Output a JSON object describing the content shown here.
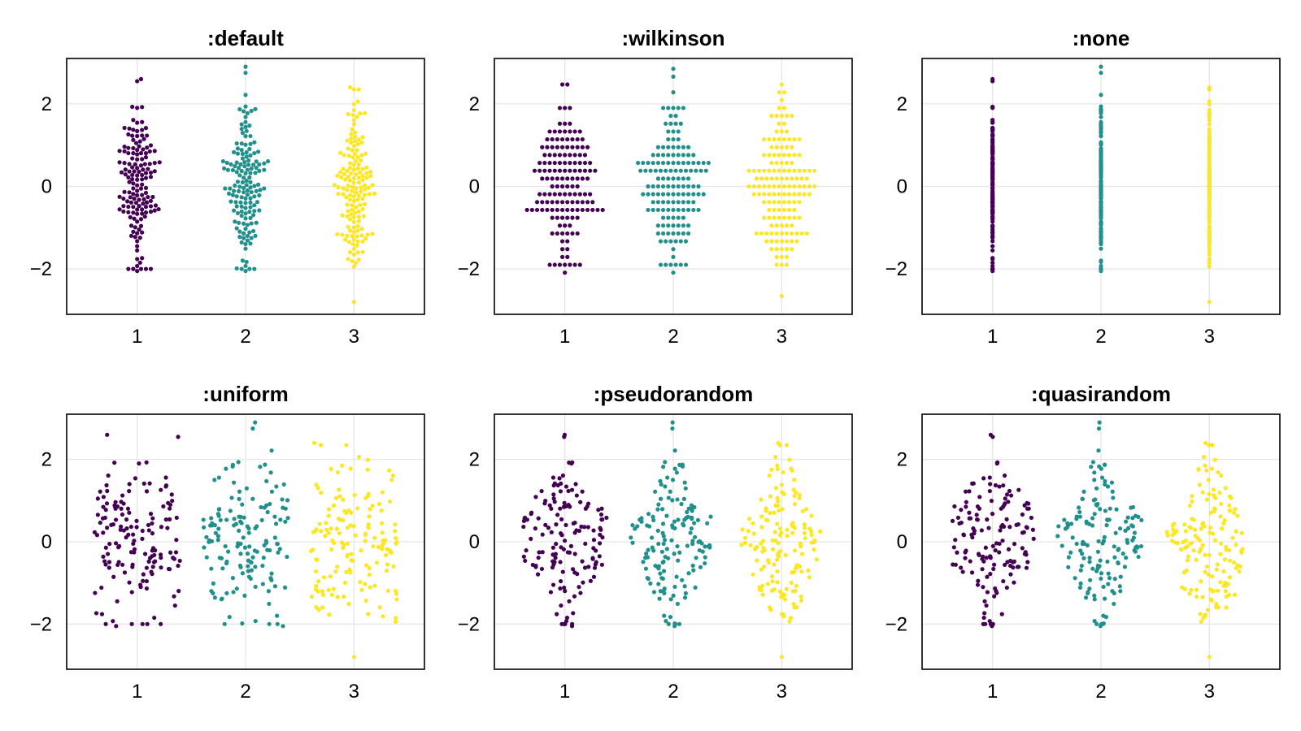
{
  "figure": {
    "description_free": true
  },
  "series_colors": {
    "1": "#440154",
    "2": "#21908C",
    "3": "#FDE725"
  },
  "chart_data": [
    {
      "type": "scatter",
      "title": ":default",
      "layout_style": "swarm",
      "categories": [
        "1",
        "2",
        "3"
      ],
      "x_ticks": [
        "1",
        "2",
        "3"
      ],
      "y_ticks": [
        "−2",
        "0",
        "2"
      ],
      "xlim": [
        0.35,
        3.65
      ],
      "ylim": [
        -3.1,
        3.1
      ],
      "series": [
        {
          "name": "1",
          "n": 150,
          "y_min": -2.05,
          "y_max": 2.6
        },
        {
          "name": "2",
          "n": 150,
          "y_min": -2.05,
          "y_max": 2.9
        },
        {
          "name": "3",
          "n": 150,
          "y_min": -2.8,
          "y_max": 2.4
        }
      ]
    },
    {
      "type": "scatter",
      "title": ":wilkinson",
      "layout_style": "wilkinson",
      "categories": [
        "1",
        "2",
        "3"
      ],
      "x_ticks": [
        "1",
        "2",
        "3"
      ],
      "y_ticks": [
        "−2",
        "0",
        "2"
      ],
      "xlim": [
        0.35,
        3.65
      ],
      "ylim": [
        -3.1,
        3.1
      ],
      "series": [
        {
          "name": "1",
          "n": 150,
          "y_min": -2.0,
          "y_max": 2.5
        },
        {
          "name": "2",
          "n": 150,
          "y_min": -2.0,
          "y_max": 2.8
        },
        {
          "name": "3",
          "n": 150,
          "y_min": -2.7,
          "y_max": 2.4
        }
      ]
    },
    {
      "type": "scatter",
      "title": ":none",
      "layout_style": "none",
      "categories": [
        "1",
        "2",
        "3"
      ],
      "x_ticks": [
        "1",
        "2",
        "3"
      ],
      "y_ticks": [
        "−2",
        "0",
        "2"
      ],
      "xlim": [
        0.35,
        3.65
      ],
      "ylim": [
        -3.1,
        3.1
      ],
      "series": [
        {
          "name": "1",
          "n": 150,
          "y_min": -2.05,
          "y_max": 2.6
        },
        {
          "name": "2",
          "n": 150,
          "y_min": -2.05,
          "y_max": 2.9
        },
        {
          "name": "3",
          "n": 150,
          "y_min": -2.8,
          "y_max": 2.4
        }
      ]
    },
    {
      "type": "scatter",
      "title": ":uniform",
      "layout_style": "uniform",
      "categories": [
        "1",
        "2",
        "3"
      ],
      "x_ticks": [
        "1",
        "2",
        "3"
      ],
      "y_ticks": [
        "−2",
        "0",
        "2"
      ],
      "xlim": [
        0.35,
        3.65
      ],
      "ylim": [
        -3.1,
        3.1
      ],
      "series": [
        {
          "name": "1",
          "n": 150,
          "y_min": -2.05,
          "y_max": 2.6
        },
        {
          "name": "2",
          "n": 150,
          "y_min": -2.05,
          "y_max": 2.9
        },
        {
          "name": "3",
          "n": 150,
          "y_min": -2.8,
          "y_max": 2.4
        }
      ]
    },
    {
      "type": "scatter",
      "title": ":pseudorandom",
      "layout_style": "pseudorandom",
      "categories": [
        "1",
        "2",
        "3"
      ],
      "x_ticks": [
        "1",
        "2",
        "3"
      ],
      "y_ticks": [
        "−2",
        "0",
        "2"
      ],
      "xlim": [
        0.35,
        3.65
      ],
      "ylim": [
        -3.1,
        3.1
      ],
      "series": [
        {
          "name": "1",
          "n": 150,
          "y_min": -2.05,
          "y_max": 2.6
        },
        {
          "name": "2",
          "n": 150,
          "y_min": -2.05,
          "y_max": 2.9
        },
        {
          "name": "3",
          "n": 150,
          "y_min": -2.8,
          "y_max": 2.4
        }
      ]
    },
    {
      "type": "scatter",
      "title": ":quasirandom",
      "layout_style": "quasirandom",
      "categories": [
        "1",
        "2",
        "3"
      ],
      "x_ticks": [
        "1",
        "2",
        "3"
      ],
      "y_ticks": [
        "−2",
        "0",
        "2"
      ],
      "xlim": [
        0.35,
        3.65
      ],
      "ylim": [
        -3.1,
        3.1
      ],
      "series": [
        {
          "name": "1",
          "n": 150,
          "y_min": -2.05,
          "y_max": 2.6
        },
        {
          "name": "2",
          "n": 150,
          "y_min": -2.05,
          "y_max": 2.9
        },
        {
          "name": "3",
          "n": 150,
          "y_min": -2.8,
          "y_max": 2.4
        }
      ]
    }
  ]
}
